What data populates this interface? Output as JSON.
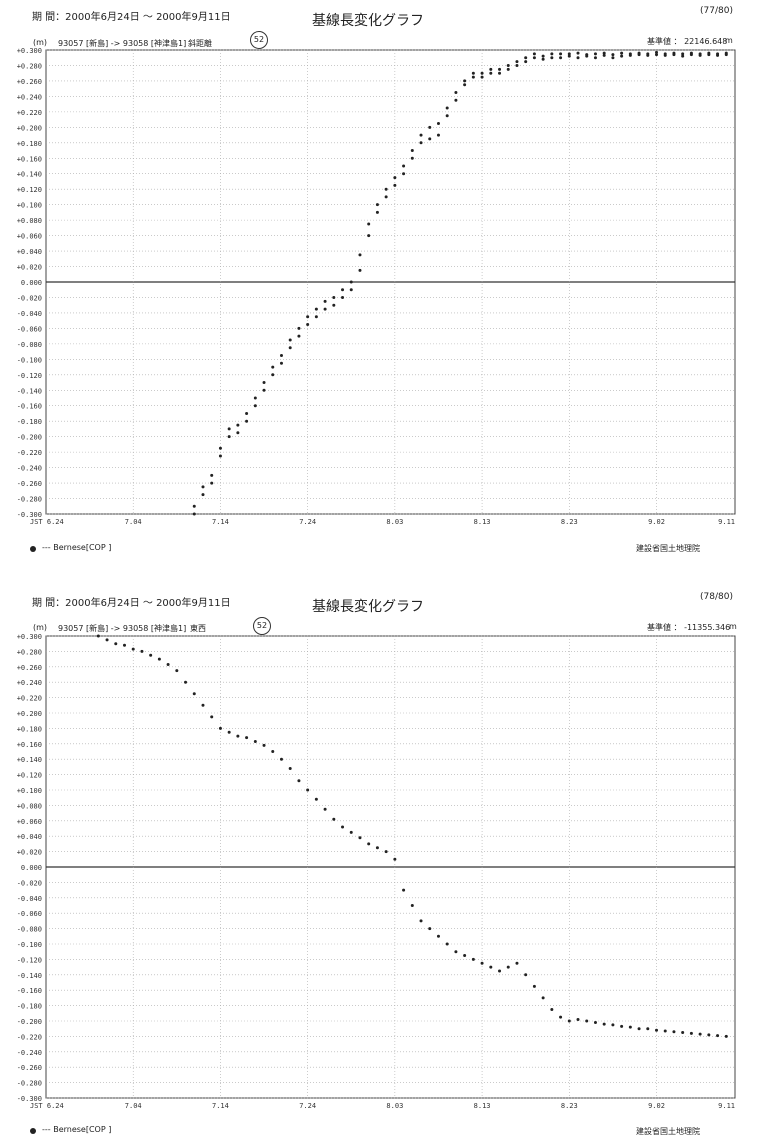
{
  "charts": [
    {
      "period": "期 間：2000年6月24日 ～ 2000年9月11日",
      "title": "基線長変化グラフ",
      "page_no": "(77/80)",
      "unit_tag": "(m)",
      "baseline": "93057 [新島] -> 93058 [神津島1]",
      "component": "斜距離",
      "circle_no": "52",
      "ref_label": "基準値 ： 22146.648",
      "ref_unit": "m",
      "legend": "--- Bernese[COP ]",
      "footer": "建設省国土地理院"
    },
    {
      "period": "期 間：2000年6月24日 ～ 2000年9月11日",
      "title": "基線長変化グラフ",
      "page_no": "(78/80)",
      "unit_tag": "(m)",
      "baseline": "93057 [新島] -> 93058 [神津島1]",
      "component": "東西",
      "circle_no": "52",
      "ref_label": "基準値 ： -11355.346",
      "ref_unit": "m",
      "legend": "--- Bernese[COP ]",
      "footer": "建設省国土地理院"
    }
  ],
  "chart_data": [
    {
      "type": "scatter",
      "title": "基線長変化グラフ",
      "ylabel": "(m)",
      "x_tick_labels": [
        "JST 6.24",
        "7.04",
        "7.14",
        "7.24",
        "8.03",
        "8.13",
        "8.23",
        "9.02",
        "9.11"
      ],
      "y_tick_labels": [
        "+0.300",
        "+0.280",
        "+0.260",
        "+0.240",
        "+0.220",
        "+0.200",
        "+0.180",
        "+0.160",
        "+0.140",
        "+0.120",
        "+0.100",
        "+0.080",
        "+0.060",
        "+0.040",
        "+0.020",
        "0.000",
        "-0.020",
        "-0.040",
        "-0.060",
        "-0.080",
        "-0.100",
        "-0.120",
        "-0.140",
        "-0.160",
        "-0.180",
        "-0.200",
        "-0.220",
        "-0.240",
        "-0.260",
        "-0.280",
        "-0.300"
      ],
      "xlim": [
        "2000-06-24",
        "2000-09-11"
      ],
      "ylim": [
        -0.3,
        0.3
      ],
      "grid": true,
      "series": [
        {
          "name": "Bernese[COP ]",
          "x": [
            "2000-07-11",
            "2000-07-11",
            "2000-07-12",
            "2000-07-12",
            "2000-07-13",
            "2000-07-13",
            "2000-07-14",
            "2000-07-14",
            "2000-07-15",
            "2000-07-15",
            "2000-07-16",
            "2000-07-16",
            "2000-07-17",
            "2000-07-17",
            "2000-07-18",
            "2000-07-18",
            "2000-07-19",
            "2000-07-19",
            "2000-07-20",
            "2000-07-20",
            "2000-07-21",
            "2000-07-21",
            "2000-07-22",
            "2000-07-22",
            "2000-07-23",
            "2000-07-23",
            "2000-07-24",
            "2000-07-24",
            "2000-07-25",
            "2000-07-25",
            "2000-07-26",
            "2000-07-26",
            "2000-07-27",
            "2000-07-27",
            "2000-07-28",
            "2000-07-28",
            "2000-07-29",
            "2000-07-29",
            "2000-07-30",
            "2000-07-30",
            "2000-07-31",
            "2000-07-31",
            "2000-08-01",
            "2000-08-01",
            "2000-08-02",
            "2000-08-02",
            "2000-08-03",
            "2000-08-03",
            "2000-08-04",
            "2000-08-04",
            "2000-08-05",
            "2000-08-05",
            "2000-08-06",
            "2000-08-06",
            "2000-08-07",
            "2000-08-07",
            "2000-08-08",
            "2000-08-08",
            "2000-08-09",
            "2000-08-09",
            "2000-08-10",
            "2000-08-10",
            "2000-08-11",
            "2000-08-11",
            "2000-08-12",
            "2000-08-12",
            "2000-08-13",
            "2000-08-13",
            "2000-08-14",
            "2000-08-14",
            "2000-08-15",
            "2000-08-15",
            "2000-08-16",
            "2000-08-16",
            "2000-08-17",
            "2000-08-17",
            "2000-08-18",
            "2000-08-18",
            "2000-08-19",
            "2000-08-19",
            "2000-08-20",
            "2000-08-20",
            "2000-08-21",
            "2000-08-21",
            "2000-08-22",
            "2000-08-22",
            "2000-08-23",
            "2000-08-23",
            "2000-08-24",
            "2000-08-24",
            "2000-08-25",
            "2000-08-25",
            "2000-08-26",
            "2000-08-26",
            "2000-08-27",
            "2000-08-27",
            "2000-08-28",
            "2000-08-28",
            "2000-08-29",
            "2000-08-29",
            "2000-08-30",
            "2000-08-30",
            "2000-08-31",
            "2000-08-31",
            "2000-09-01",
            "2000-09-01",
            "2000-09-02",
            "2000-09-02",
            "2000-09-03",
            "2000-09-03",
            "2000-09-04",
            "2000-09-04",
            "2000-09-05",
            "2000-09-05",
            "2000-09-06",
            "2000-09-06",
            "2000-09-07",
            "2000-09-07",
            "2000-09-08",
            "2000-09-08",
            "2000-09-09",
            "2000-09-09",
            "2000-09-10",
            "2000-09-10"
          ],
          "y": [
            -0.3,
            -0.29,
            -0.275,
            -0.265,
            -0.26,
            -0.25,
            -0.225,
            -0.215,
            -0.2,
            -0.19,
            -0.195,
            -0.185,
            -0.18,
            -0.17,
            -0.16,
            -0.15,
            -0.14,
            -0.13,
            -0.12,
            -0.11,
            -0.105,
            -0.095,
            -0.085,
            -0.075,
            -0.07,
            -0.06,
            -0.055,
            -0.045,
            -0.045,
            -0.035,
            -0.035,
            -0.025,
            -0.03,
            -0.02,
            -0.02,
            -0.01,
            -0.01,
            0.0,
            0.015,
            0.035,
            0.06,
            0.075,
            0.09,
            0.1,
            0.11,
            0.12,
            0.125,
            0.135,
            0.14,
            0.15,
            0.16,
            0.17,
            0.18,
            0.19,
            0.185,
            0.2,
            0.19,
            0.205,
            0.215,
            0.225,
            0.235,
            0.245,
            0.255,
            0.26,
            0.265,
            0.27,
            0.265,
            0.27,
            0.27,
            0.275,
            0.27,
            0.275,
            0.275,
            0.28,
            0.28,
            0.285,
            0.285,
            0.29,
            0.29,
            0.295,
            0.288,
            0.292,
            0.29,
            0.295,
            0.29,
            0.295,
            0.292,
            0.295,
            0.29,
            0.296,
            0.292,
            0.294,
            0.29,
            0.295,
            0.293,
            0.296,
            0.29,
            0.294,
            0.292,
            0.296,
            0.293,
            0.295,
            0.294,
            0.296,
            0.293,
            0.295,
            0.294,
            0.297,
            0.293,
            0.295,
            0.294,
            0.296,
            0.292,
            0.295,
            0.294,
            0.296,
            0.293,
            0.295,
            0.294,
            0.296,
            0.293,
            0.295,
            0.294,
            0.296
          ]
        }
      ]
    },
    {
      "type": "scatter",
      "title": "基線長変化グラフ",
      "ylabel": "(m)",
      "x_tick_labels": [
        "JST 6.24",
        "7.04",
        "7.14",
        "7.24",
        "8.03",
        "8.13",
        "8.23",
        "9.02",
        "9.11"
      ],
      "y_tick_labels": [
        "+0.300",
        "+0.280",
        "+0.260",
        "+0.240",
        "+0.220",
        "+0.200",
        "+0.180",
        "+0.160",
        "+0.140",
        "+0.120",
        "+0.100",
        "+0.080",
        "+0.060",
        "+0.040",
        "+0.020",
        "0.000",
        "-0.020",
        "-0.040",
        "-0.060",
        "-0.080",
        "-0.100",
        "-0.120",
        "-0.140",
        "-0.160",
        "-0.180",
        "-0.200",
        "-0.220",
        "-0.240",
        "-0.260",
        "-0.280",
        "-0.300"
      ],
      "xlim": [
        "2000-06-24",
        "2000-09-11"
      ],
      "ylim": [
        -0.3,
        0.3
      ],
      "grid": true,
      "series": [
        {
          "name": "Bernese[COP ]",
          "x": [
            "2000-06-30",
            "2000-07-01",
            "2000-07-02",
            "2000-07-03",
            "2000-07-04",
            "2000-07-05",
            "2000-07-06",
            "2000-07-07",
            "2000-07-08",
            "2000-07-09",
            "2000-07-10",
            "2000-07-11",
            "2000-07-12",
            "2000-07-13",
            "2000-07-14",
            "2000-07-15",
            "2000-07-16",
            "2000-07-17",
            "2000-07-18",
            "2000-07-19",
            "2000-07-20",
            "2000-07-21",
            "2000-07-22",
            "2000-07-23",
            "2000-07-24",
            "2000-07-25",
            "2000-07-26",
            "2000-07-27",
            "2000-07-28",
            "2000-07-29",
            "2000-07-30",
            "2000-07-31",
            "2000-08-01",
            "2000-08-02",
            "2000-08-03",
            "2000-08-04",
            "2000-08-05",
            "2000-08-06",
            "2000-08-07",
            "2000-08-08",
            "2000-08-09",
            "2000-08-10",
            "2000-08-11",
            "2000-08-12",
            "2000-08-13",
            "2000-08-14",
            "2000-08-15",
            "2000-08-16",
            "2000-08-17",
            "2000-08-18",
            "2000-08-19",
            "2000-08-20",
            "2000-08-21",
            "2000-08-22",
            "2000-08-23",
            "2000-08-24",
            "2000-08-25",
            "2000-08-26",
            "2000-08-27",
            "2000-08-28",
            "2000-08-29",
            "2000-08-30",
            "2000-08-31",
            "2000-09-01",
            "2000-09-02",
            "2000-09-03",
            "2000-09-04",
            "2000-09-05",
            "2000-09-06",
            "2000-09-07",
            "2000-09-08",
            "2000-09-09",
            "2000-09-10"
          ],
          "y": [
            0.3,
            0.295,
            0.29,
            0.288,
            0.283,
            0.28,
            0.275,
            0.27,
            0.263,
            0.255,
            0.24,
            0.225,
            0.21,
            0.195,
            0.18,
            0.175,
            0.17,
            0.168,
            0.163,
            0.158,
            0.15,
            0.14,
            0.128,
            0.112,
            0.1,
            0.088,
            0.075,
            0.062,
            0.052,
            0.045,
            0.038,
            0.03,
            0.025,
            0.02,
            0.01,
            -0.03,
            -0.05,
            -0.07,
            -0.08,
            -0.09,
            -0.1,
            -0.11,
            -0.115,
            -0.12,
            -0.125,
            -0.13,
            -0.135,
            -0.13,
            -0.125,
            -0.14,
            -0.155,
            -0.17,
            -0.185,
            -0.195,
            -0.2,
            -0.198,
            -0.2,
            -0.202,
            -0.204,
            -0.205,
            -0.207,
            -0.208,
            -0.21,
            -0.21,
            -0.212,
            -0.213,
            -0.214,
            -0.215,
            -0.216,
            -0.217,
            -0.218,
            -0.219,
            -0.22
          ]
        }
      ]
    }
  ]
}
